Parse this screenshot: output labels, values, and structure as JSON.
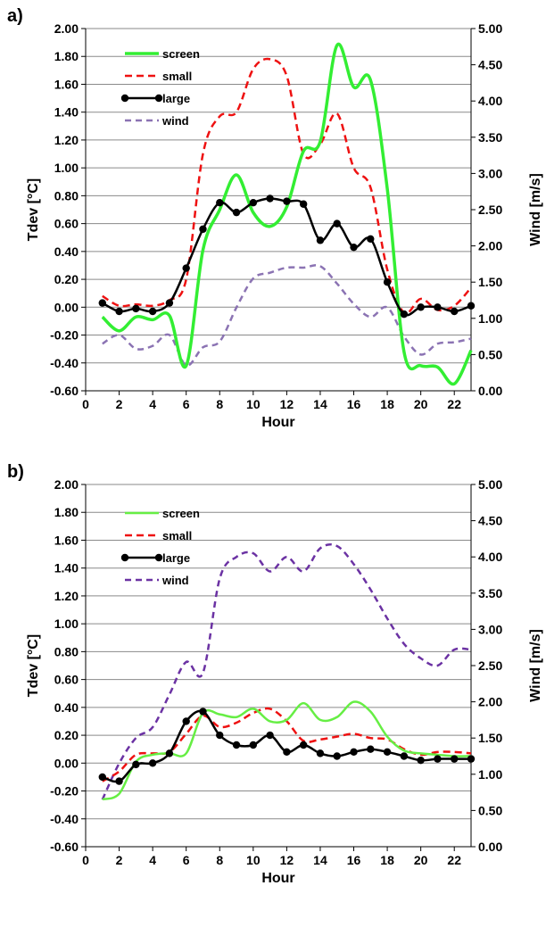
{
  "chart_data": [
    {
      "panel_label": "a)",
      "type": "line",
      "xlabel": "Hour",
      "ylabel": "Tdev [°C]",
      "y2label": "Wind [m/s]",
      "xlim": [
        0,
        23
      ],
      "ylim": [
        -0.6,
        2.0
      ],
      "y2lim": [
        0.0,
        5.0
      ],
      "x_ticks": [
        "0",
        "2",
        "4",
        "6",
        "8",
        "10",
        "12",
        "14",
        "16",
        "18",
        "20",
        "22"
      ],
      "y_ticks": [
        "-0.60",
        "-0.40",
        "-0.20",
        "0.00",
        "0.20",
        "0.40",
        "0.60",
        "0.80",
        "1.00",
        "1.20",
        "1.40",
        "1.60",
        "1.80",
        "2.00"
      ],
      "y2_ticks": [
        "0.00",
        "0.50",
        "1.00",
        "1.50",
        "2.00",
        "2.50",
        "3.00",
        "3.50",
        "4.00",
        "4.50",
        "5.00"
      ],
      "grid": true,
      "legend_position": "top-left",
      "series": [
        {
          "name": "screen",
          "axis": "left",
          "color": "#33ee33",
          "dash": "",
          "markers": false,
          "width": 3.5,
          "x": [
            1,
            2,
            3,
            4,
            5,
            6,
            7,
            8,
            9,
            10,
            11,
            12,
            13,
            14,
            15,
            16,
            17,
            18,
            19,
            20,
            21,
            22,
            23
          ],
          "y": [
            -0.07,
            -0.17,
            -0.07,
            -0.09,
            -0.06,
            -0.42,
            0.41,
            0.7,
            0.95,
            0.68,
            0.58,
            0.72,
            1.12,
            1.19,
            1.88,
            1.58,
            1.63,
            0.85,
            -0.32,
            -0.42,
            -0.43,
            -0.55,
            -0.31
          ]
        },
        {
          "name": "small",
          "axis": "left",
          "color": "#ee1111",
          "dash": "8,5",
          "markers": false,
          "width": 2.5,
          "x": [
            1,
            2,
            3,
            4,
            5,
            6,
            7,
            8,
            9,
            10,
            11,
            12,
            13,
            14,
            15,
            16,
            17,
            18,
            19,
            20,
            21,
            22,
            23
          ],
          "y": [
            0.08,
            0.01,
            0.02,
            0.01,
            0.05,
            0.2,
            1.1,
            1.37,
            1.4,
            1.71,
            1.78,
            1.66,
            1.1,
            1.17,
            1.39,
            1.0,
            0.86,
            0.27,
            -0.04,
            0.06,
            -0.02,
            0.01,
            0.14
          ]
        },
        {
          "name": "large",
          "axis": "left",
          "color": "#000000",
          "dash": "",
          "markers": true,
          "width": 2.5,
          "x": [
            1,
            2,
            3,
            4,
            5,
            6,
            7,
            8,
            9,
            10,
            11,
            12,
            13,
            14,
            15,
            16,
            17,
            18,
            19,
            20,
            21,
            22,
            23
          ],
          "y": [
            0.03,
            -0.03,
            -0.01,
            -0.03,
            0.03,
            0.28,
            0.56,
            0.75,
            0.68,
            0.75,
            0.78,
            0.76,
            0.74,
            0.48,
            0.6,
            0.43,
            0.49,
            0.18,
            -0.05,
            0.0,
            0.0,
            -0.03,
            0.01
          ]
        },
        {
          "name": "wind",
          "axis": "right",
          "color": "#8b73b3",
          "dash": "7,5",
          "markers": false,
          "width": 2.5,
          "x": [
            1,
            2,
            3,
            4,
            5,
            6,
            7,
            8,
            9,
            10,
            11,
            12,
            13,
            14,
            15,
            16,
            17,
            18,
            19,
            20,
            21,
            22,
            23
          ],
          "y": [
            0.65,
            0.77,
            0.58,
            0.62,
            0.77,
            0.35,
            0.6,
            0.68,
            1.15,
            1.55,
            1.63,
            1.7,
            1.7,
            1.72,
            1.48,
            1.2,
            1.02,
            1.15,
            0.75,
            0.5,
            0.65,
            0.67,
            0.72
          ]
        }
      ]
    },
    {
      "panel_label": "b)",
      "type": "line",
      "xlabel": "Hour",
      "ylabel": "Tdev [°C]",
      "y2label": "Wind [m/s]",
      "xlim": [
        0,
        23
      ],
      "ylim": [
        -0.6,
        2.0
      ],
      "y2lim": [
        0.0,
        5.0
      ],
      "x_ticks": [
        "0",
        "2",
        "4",
        "6",
        "8",
        "10",
        "12",
        "14",
        "16",
        "18",
        "20",
        "22"
      ],
      "y_ticks": [
        "-0.60",
        "-0.40",
        "-0.20",
        "0.00",
        "0.20",
        "0.40",
        "0.60",
        "0.80",
        "1.00",
        "1.20",
        "1.40",
        "1.60",
        "1.80",
        "2.00"
      ],
      "y2_ticks": [
        "0.00",
        "0.50",
        "1.00",
        "1.50",
        "2.00",
        "2.50",
        "3.00",
        "3.50",
        "4.00",
        "4.50",
        "5.00"
      ],
      "grid": true,
      "legend_position": "top-left",
      "series": [
        {
          "name": "screen",
          "axis": "left",
          "color": "#66ee44",
          "dash": "",
          "markers": false,
          "width": 2.5,
          "x": [
            1,
            2,
            3,
            4,
            5,
            6,
            7,
            8,
            9,
            10,
            11,
            12,
            13,
            14,
            15,
            16,
            17,
            18,
            19,
            20,
            21,
            22,
            23
          ],
          "y": [
            -0.26,
            -0.22,
            0.01,
            0.06,
            0.07,
            0.07,
            0.36,
            0.35,
            0.33,
            0.39,
            0.3,
            0.31,
            0.43,
            0.31,
            0.33,
            0.44,
            0.37,
            0.19,
            0.09,
            0.07,
            0.06,
            0.05,
            0.05
          ]
        },
        {
          "name": "small",
          "axis": "left",
          "color": "#ee1111",
          "dash": "8,5",
          "markers": false,
          "width": 2.5,
          "x": [
            1,
            2,
            3,
            4,
            5,
            6,
            7,
            8,
            9,
            10,
            11,
            12,
            13,
            14,
            15,
            16,
            17,
            18,
            19,
            20,
            21,
            22,
            23
          ],
          "y": [
            -0.13,
            -0.06,
            0.06,
            0.07,
            0.08,
            0.21,
            0.34,
            0.26,
            0.29,
            0.36,
            0.39,
            0.3,
            0.16,
            0.17,
            0.19,
            0.21,
            0.18,
            0.17,
            0.1,
            0.06,
            0.08,
            0.08,
            0.07
          ]
        },
        {
          "name": "large",
          "axis": "left",
          "color": "#000000",
          "dash": "",
          "markers": true,
          "width": 2.5,
          "x": [
            1,
            2,
            3,
            4,
            5,
            6,
            7,
            8,
            9,
            10,
            11,
            12,
            13,
            14,
            15,
            16,
            17,
            18,
            19,
            20,
            21,
            22,
            23
          ],
          "y": [
            -0.1,
            -0.13,
            -0.01,
            0.0,
            0.07,
            0.3,
            0.37,
            0.2,
            0.13,
            0.13,
            0.2,
            0.08,
            0.13,
            0.07,
            0.05,
            0.08,
            0.1,
            0.08,
            0.05,
            0.02,
            0.03,
            0.03,
            0.03
          ]
        },
        {
          "name": "wind",
          "axis": "right",
          "color": "#6b32a3",
          "dash": "7,5",
          "markers": false,
          "width": 2.5,
          "x": [
            1,
            2,
            3,
            4,
            5,
            6,
            7,
            8,
            9,
            10,
            11,
            12,
            13,
            14,
            15,
            16,
            17,
            18,
            19,
            20,
            21,
            22,
            23
          ],
          "y": [
            0.65,
            1.15,
            1.5,
            1.65,
            2.1,
            2.55,
            2.4,
            3.7,
            4.0,
            4.05,
            3.8,
            4.0,
            3.8,
            4.12,
            4.15,
            3.9,
            3.55,
            3.15,
            2.8,
            2.6,
            2.5,
            2.72,
            2.72
          ]
        }
      ]
    }
  ]
}
